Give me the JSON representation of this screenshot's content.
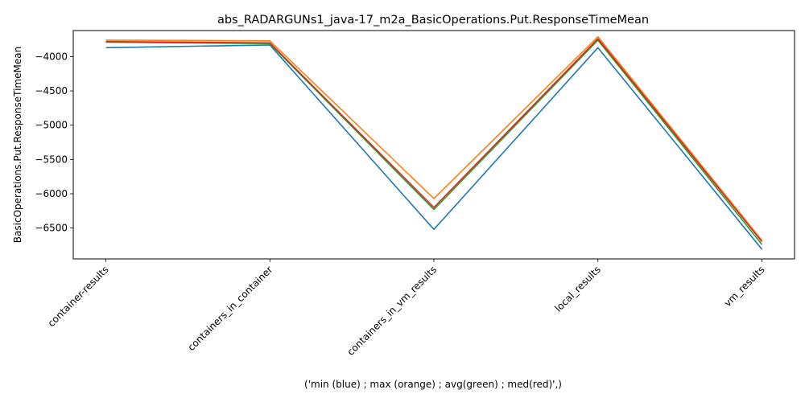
{
  "chart_data": {
    "type": "line",
    "title": "abs_RADARGUNs1_java-17_m2a_BasicOperations.Put.ResponseTimeMean",
    "xlabel": "('min (blue) ; max (orange) ; avg(green) ; med(red)',)",
    "ylabel": "BasicOperations.Put.ResponseTimeMean",
    "categories": [
      "container-results",
      "containers_in_container",
      "containers_in_vm_results",
      "local_results",
      "vm_results"
    ],
    "ylim": [
      -6950,
      -3620
    ],
    "yticks": [
      -4000,
      -4500,
      -5000,
      -5500,
      -6000,
      -6500
    ],
    "grid": false,
    "series": [
      {
        "color": "#1f77b4",
        "values": [
          -3870,
          -3830,
          -6520,
          -3870,
          -6810
        ]
      },
      {
        "color": "#ff7f0e",
        "values": [
          -3760,
          -3770,
          -6070,
          -3710,
          -6680
        ]
      },
      {
        "color": "#2ca02c",
        "values": [
          -3790,
          -3810,
          -6230,
          -3760,
          -6740
        ]
      },
      {
        "color": "#d62728",
        "values": [
          -3780,
          -3800,
          -6200,
          -3740,
          -6700
        ]
      }
    ]
  }
}
